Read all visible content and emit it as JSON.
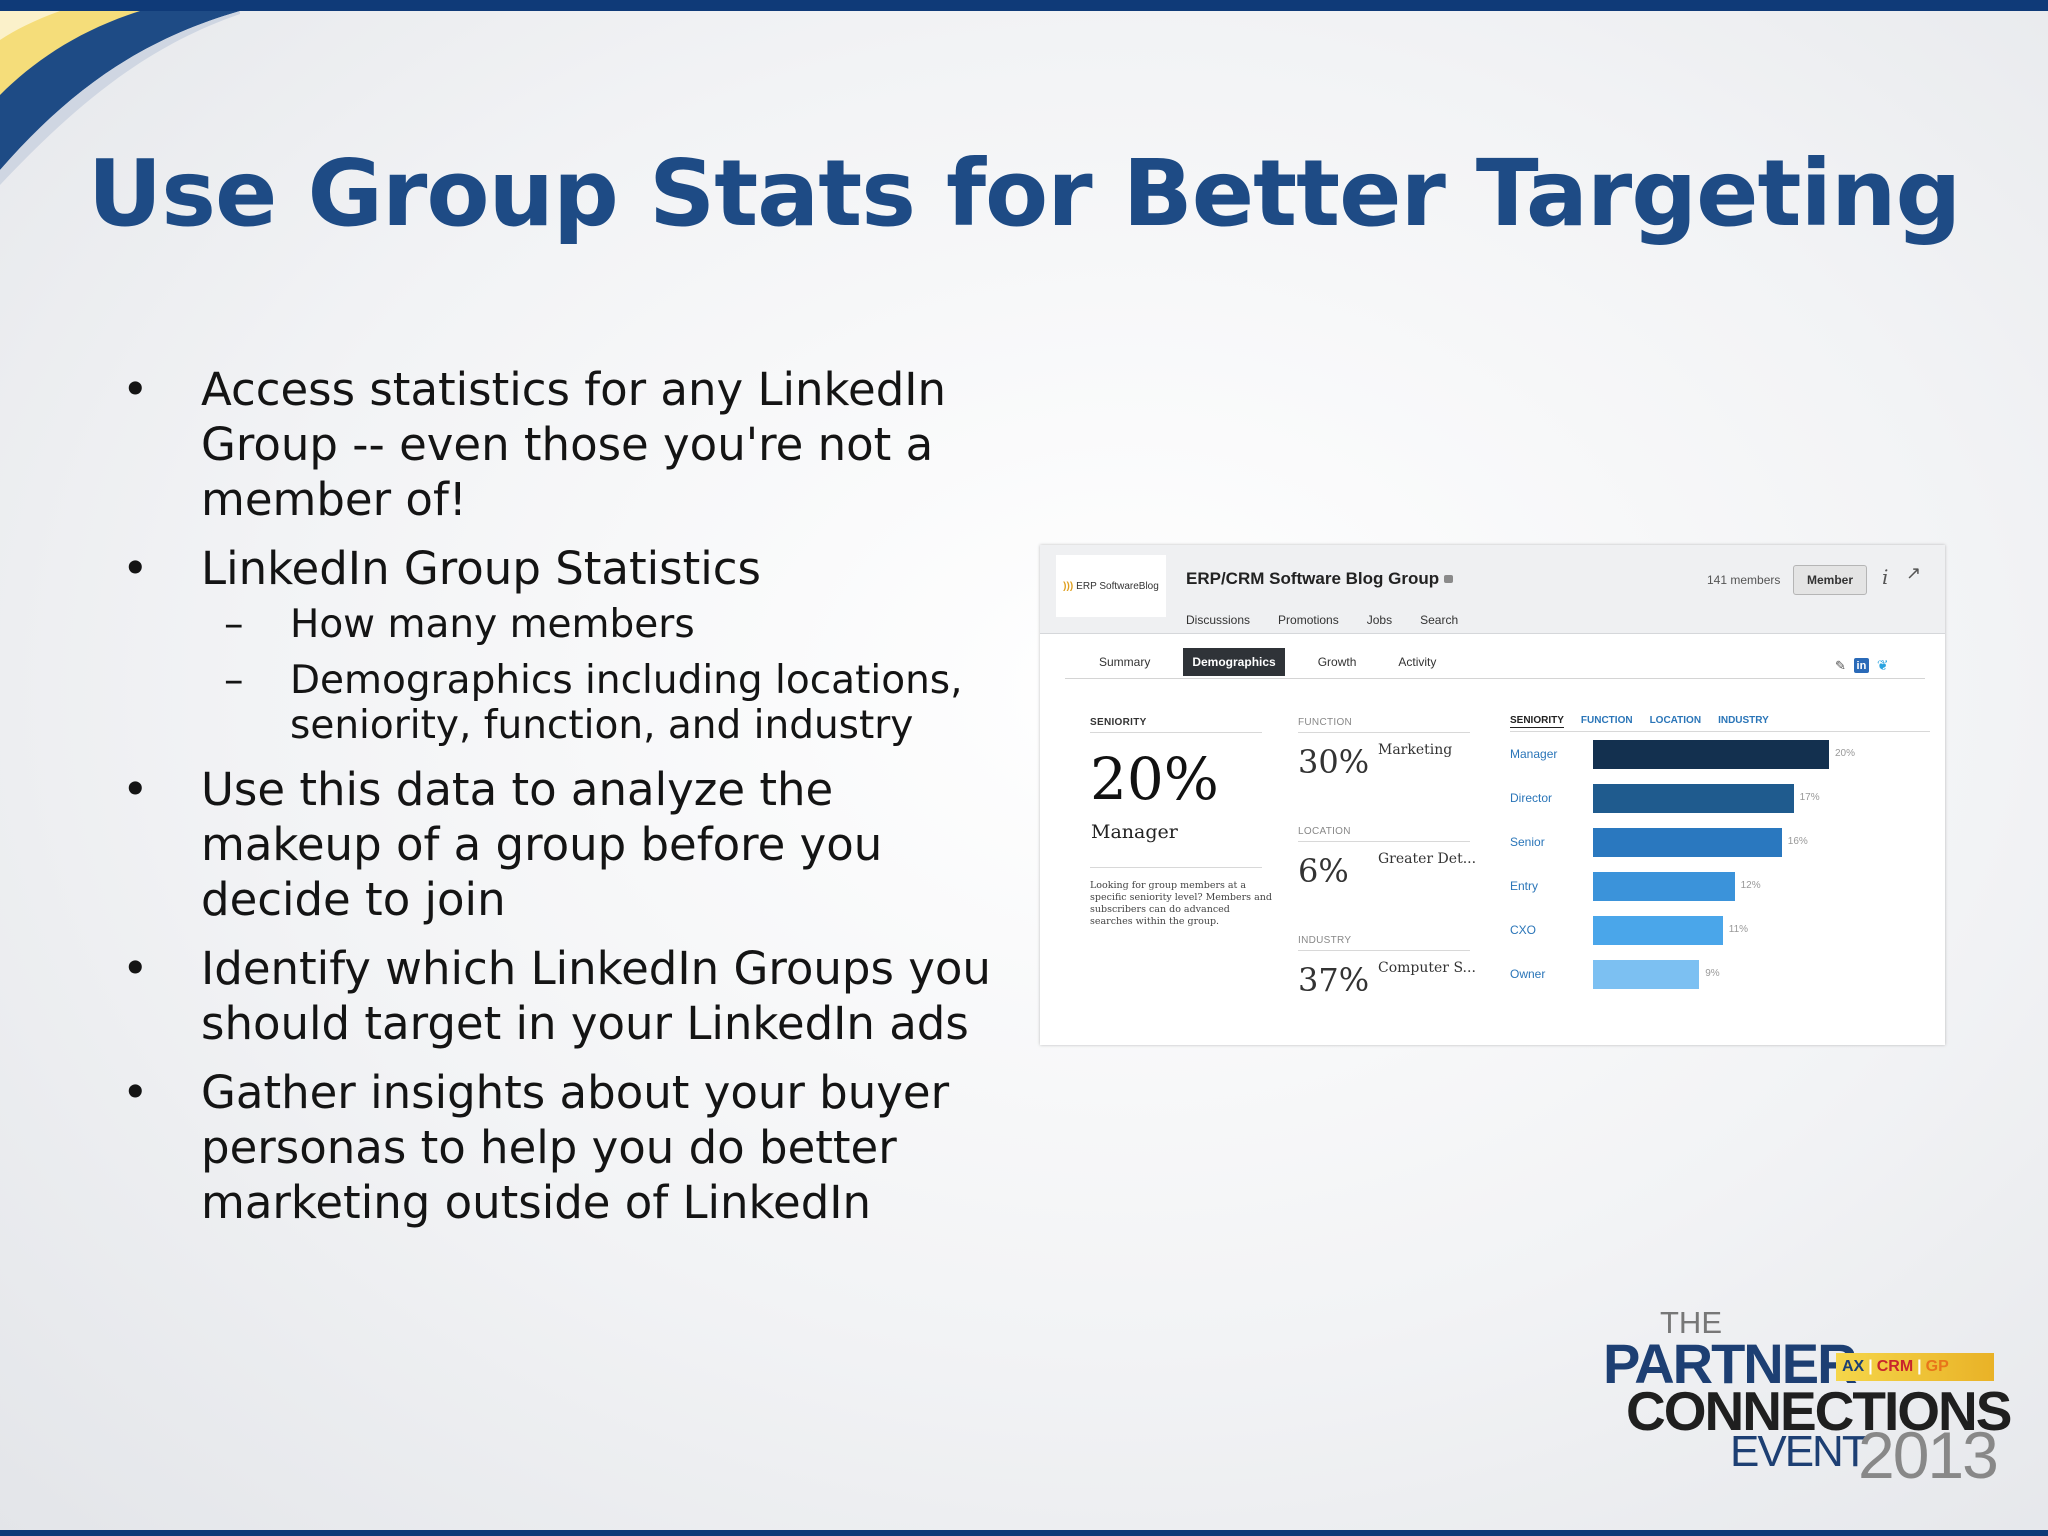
{
  "slide": {
    "title": "Use Group Stats for Better Targeting",
    "bullets": [
      {
        "level": 1,
        "text": "Access statistics for any LinkedIn Group -- even those you're not a member of!"
      },
      {
        "level": 1,
        "text": "LinkedIn Group Statistics"
      },
      {
        "level": 2,
        "text": "How many members"
      },
      {
        "level": 2,
        "text": "Demographics including locations, seniority, function, and industry"
      },
      {
        "level": 1,
        "text": "Use this data to analyze the makeup of a group before you decide to join"
      },
      {
        "level": 1,
        "text": "Identify which LinkedIn Groups you should target in your LinkedIn ads"
      },
      {
        "level": 1,
        "text": "Gather insights about your buyer personas to help you do better marketing outside of LinkedIn"
      }
    ],
    "bullet_symbol": "•",
    "sub_bullet_symbol": "–"
  },
  "screenshot": {
    "logo_text": "ERP SoftwareBlog",
    "group_name": "ERP/CRM Software Blog Group",
    "members": "141 members",
    "member_button": "Member",
    "info_glyph": "i",
    "share_glyph": "↗",
    "nav": [
      "Discussions",
      "Promotions",
      "Jobs",
      "Search"
    ],
    "tabs": [
      "Summary",
      "Demographics",
      "Growth",
      "Activity"
    ],
    "active_tab": "Demographics",
    "seniority_label": "SENIORITY",
    "seniority_pct": "20%",
    "seniority_name": "Manager",
    "seniority_note": "Looking for group members at a specific seniority level? Members and subscribers can do advanced searches within the group.",
    "function_label": "FUNCTION",
    "function_pct": "30%",
    "function_name": "Marketing",
    "location_label": "LOCATION",
    "location_pct": "6%",
    "location_name": "Greater Det...",
    "industry_label": "INDUSTRY",
    "industry_pct": "37%",
    "industry_name": "Computer S...",
    "chart_tabs": [
      "SENIORITY",
      "FUNCTION",
      "LOCATION",
      "INDUSTRY"
    ],
    "chart_active_tab": "SENIORITY"
  },
  "chart_data": {
    "type": "bar",
    "orientation": "horizontal",
    "categories": [
      "Manager",
      "Director",
      "Senior",
      "Entry",
      "CXO",
      "Owner"
    ],
    "values": [
      20,
      17,
      16,
      12,
      11,
      9
    ],
    "value_labels": [
      "20%",
      "17%",
      "16%",
      "12%",
      "11%",
      "9%"
    ],
    "colors": [
      "#13304f",
      "#1f5b8e",
      "#2a78bf",
      "#3b93da",
      "#4aa6ea",
      "#7cc0f2"
    ]
  },
  "brand": {
    "the": "THE",
    "partner": "PARTNER",
    "ax": "AX",
    "crm": "CRM",
    "gp": "GP",
    "connections": "CONNECTIONS",
    "event": "EVENT",
    "year": "2013"
  },
  "colors": {
    "title": "#1e4b85",
    "top_bar": "#0f3a78",
    "accent_yellow": "#f5dd7a"
  }
}
